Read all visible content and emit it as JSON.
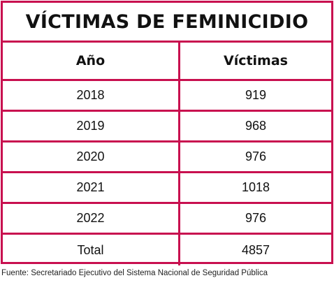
{
  "title": "VÍCTIMAS DE FEMINICIDIO",
  "table": {
    "headers": {
      "year": "Año",
      "victims": "Víctimas"
    },
    "rows": [
      {
        "year": "2018",
        "victims": "919"
      },
      {
        "year": "2019",
        "victims": "968"
      },
      {
        "year": "2020",
        "victims": "976"
      },
      {
        "year": "2021",
        "victims": "1018"
      },
      {
        "year": "2022",
        "victims": "976"
      },
      {
        "year": "Total",
        "victims": "4857"
      }
    ]
  },
  "source": "Fuente: Secretariado Ejecutivo del Sistema Nacional de Seguridad Pública",
  "colors": {
    "border": "#c8104f",
    "text": "#111111",
    "background": "#ffffff"
  }
}
